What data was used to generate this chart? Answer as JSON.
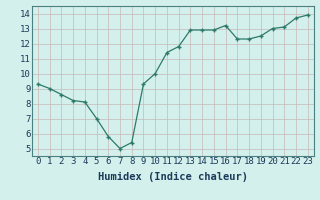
{
  "x": [
    0,
    1,
    2,
    3,
    4,
    5,
    6,
    7,
    8,
    9,
    10,
    11,
    12,
    13,
    14,
    15,
    16,
    17,
    18,
    19,
    20,
    21,
    22,
    23
  ],
  "y": [
    9.3,
    9.0,
    8.6,
    8.2,
    8.1,
    7.0,
    5.8,
    5.0,
    5.4,
    9.3,
    10.0,
    11.4,
    11.8,
    12.9,
    12.9,
    12.9,
    13.2,
    12.3,
    12.3,
    12.5,
    13.0,
    13.1,
    13.7,
    13.9
  ],
  "xlabel": "Humidex (Indice chaleur)",
  "ylim": [
    4.5,
    14.5
  ],
  "xlim": [
    -0.5,
    23.5
  ],
  "yticks": [
    5,
    6,
    7,
    8,
    9,
    10,
    11,
    12,
    13,
    14
  ],
  "xticks": [
    0,
    1,
    2,
    3,
    4,
    5,
    6,
    7,
    8,
    9,
    10,
    11,
    12,
    13,
    14,
    15,
    16,
    17,
    18,
    19,
    20,
    21,
    22,
    23
  ],
  "line_color": "#2d7a6a",
  "marker_color": "#2d7a6a",
  "bg_color": "#d4f0ec",
  "grid_color": "#c8b8b8",
  "label_color": "#1a3a5a",
  "tick_color": "#1a3a5a",
  "xlabel_fontsize": 7.5,
  "tick_fontsize": 6.5
}
